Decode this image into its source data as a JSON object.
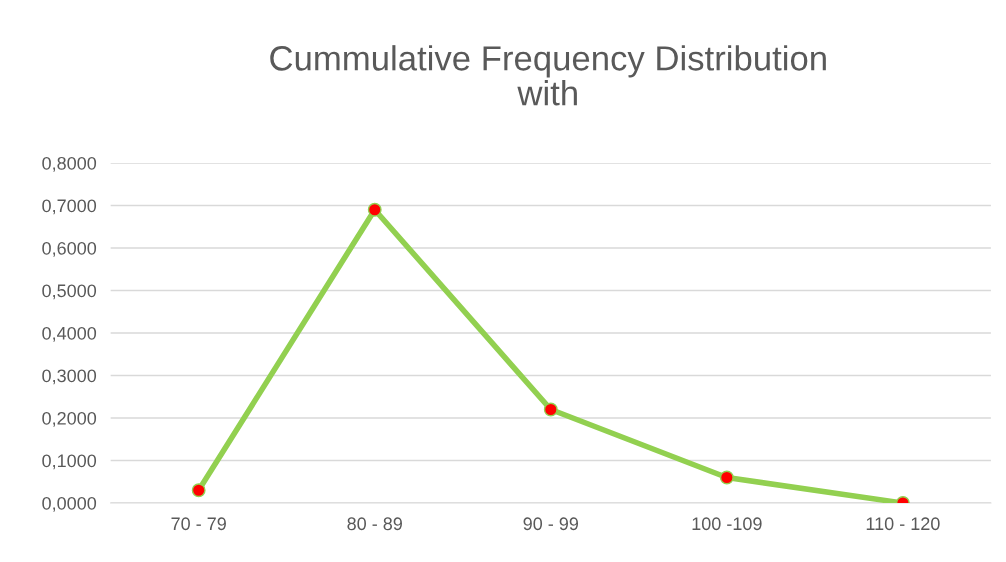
{
  "chart_data": {
    "type": "line",
    "title": "Cummulative Frequency Distribution\nwith",
    "categories": [
      "70 - 79",
      "80 - 89",
      "90 - 99",
      "100 -109",
      "110 - 120"
    ],
    "series": [
      {
        "color": "#92d050",
        "colors": [
          "#ff0000",
          "#ff0000",
          "#ff0000",
          "#ff0000",
          "#ff0000"
        ],
        "values": [
          0.03,
          0.69,
          0.22,
          0.06,
          0.0
        ]
      }
    ],
    "ylim": [
      0,
      0.8
    ],
    "yticks": [
      {
        "value": 0,
        "label": "0,0000"
      },
      {
        "value": 0.1,
        "label": "0,1000"
      },
      {
        "value": 0.2,
        "label": "0,2000"
      },
      {
        "value": 0.3,
        "label": "0,3000"
      },
      {
        "value": 0.4,
        "label": "0,4000"
      },
      {
        "value": 0.5,
        "label": "0,5000"
      },
      {
        "value": 0.6,
        "label": "0,6000"
      },
      {
        "value": 0.7,
        "label": "0,7000"
      },
      {
        "value": 0.8,
        "label": "0,8000"
      }
    ],
    "grid": "y",
    "marker": "circle",
    "line_style": "solid"
  }
}
